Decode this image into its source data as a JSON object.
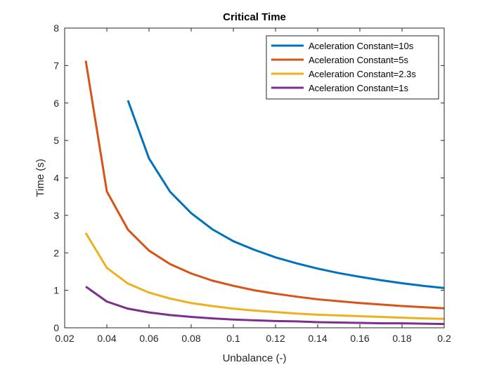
{
  "chart_data": {
    "type": "line",
    "title": "Critical Time",
    "xlabel": "Unbalance (-)",
    "ylabel": "Time (s)",
    "xlim": [
      0.02,
      0.2
    ],
    "ylim": [
      0,
      8
    ],
    "xticks": [
      0.02,
      0.04,
      0.06,
      0.08,
      0.1,
      0.12,
      0.14,
      0.16,
      0.18,
      0.2
    ],
    "xtick_labels": [
      "0.02",
      "0.04",
      "0.06",
      "0.08",
      "0.1",
      "0.12",
      "0.14",
      "0.16",
      "0.18",
      "0.2"
    ],
    "yticks": [
      0,
      1,
      2,
      3,
      4,
      5,
      6,
      7,
      8
    ],
    "ytick_labels": [
      "0",
      "1",
      "2",
      "3",
      "4",
      "5",
      "6",
      "7",
      "8"
    ],
    "grid": false,
    "legend_position": "top-right",
    "series": [
      {
        "name": "Aceleration Constant=10s",
        "color": "#0072BD",
        "x": [
          0.05,
          0.06,
          0.07,
          0.08,
          0.09,
          0.1,
          0.11,
          0.12,
          0.13,
          0.14,
          0.15,
          0.16,
          0.17,
          0.18,
          0.19,
          0.2
        ],
        "y": [
          6.07,
          4.52,
          3.63,
          3.06,
          2.63,
          2.31,
          2.08,
          1.88,
          1.72,
          1.58,
          1.46,
          1.36,
          1.27,
          1.19,
          1.12,
          1.06
        ]
      },
      {
        "name": "Aceleration Constant=5s",
        "color": "#D95319",
        "x": [
          0.03,
          0.04,
          0.05,
          0.06,
          0.07,
          0.08,
          0.09,
          0.1,
          0.11,
          0.12,
          0.13,
          0.14,
          0.15,
          0.16,
          0.17,
          0.18,
          0.19,
          0.2
        ],
        "y": [
          7.13,
          3.64,
          2.62,
          2.06,
          1.7,
          1.45,
          1.26,
          1.12,
          1.0,
          0.91,
          0.83,
          0.76,
          0.71,
          0.66,
          0.62,
          0.58,
          0.55,
          0.52
        ]
      },
      {
        "name": "Aceleration Constant=2.3s",
        "color": "#EDB120",
        "x": [
          0.03,
          0.04,
          0.05,
          0.06,
          0.07,
          0.08,
          0.09,
          0.1,
          0.11,
          0.12,
          0.13,
          0.14,
          0.15,
          0.16,
          0.17,
          0.18,
          0.19,
          0.2
        ],
        "y": [
          2.53,
          1.6,
          1.18,
          0.94,
          0.78,
          0.66,
          0.58,
          0.51,
          0.46,
          0.42,
          0.38,
          0.35,
          0.33,
          0.31,
          0.29,
          0.27,
          0.25,
          0.24
        ]
      },
      {
        "name": "Aceleration Constant=1s",
        "color": "#7E2F8E",
        "x": [
          0.03,
          0.04,
          0.05,
          0.06,
          0.07,
          0.08,
          0.09,
          0.1,
          0.11,
          0.12,
          0.13,
          0.14,
          0.15,
          0.16,
          0.17,
          0.18,
          0.19,
          0.2
        ],
        "y": [
          1.1,
          0.7,
          0.51,
          0.41,
          0.34,
          0.29,
          0.25,
          0.22,
          0.2,
          0.18,
          0.17,
          0.15,
          0.14,
          0.13,
          0.12,
          0.12,
          0.11,
          0.1
        ]
      }
    ]
  }
}
